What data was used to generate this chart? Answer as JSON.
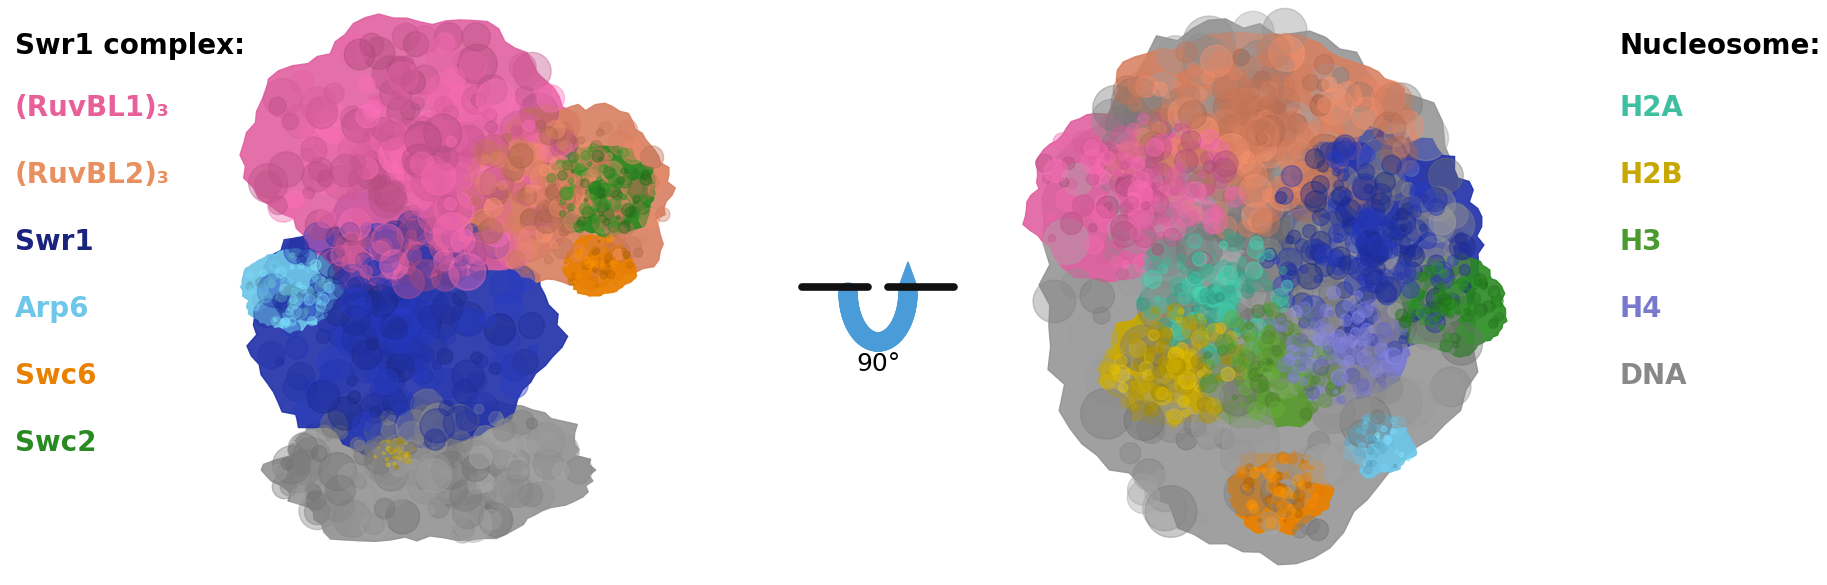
{
  "bg_color": "#ffffff",
  "title_fontsize": 20,
  "label_fontsize": 20,
  "left_legend_title": "Swr1 complex:",
  "left_legend_title_color": "#000000",
  "left_legend_items": [
    {
      "text": "(RuvBL1)₃",
      "color": "#e8609a"
    },
    {
      "text": "(RuvBL2)₃",
      "color": "#e89060"
    },
    {
      "text": "Swr1",
      "color": "#1a237e"
    },
    {
      "text": "Arp6",
      "color": "#6ec6e8"
    },
    {
      "text": "Swc6",
      "color": "#e88000"
    },
    {
      "text": "Swc2",
      "color": "#2a8a22"
    }
  ],
  "right_legend_title": "Nucleosome:",
  "right_legend_title_color": "#000000",
  "right_legend_items": [
    {
      "text": "H2A",
      "color": "#3dbfa0"
    },
    {
      "text": "H2B",
      "color": "#c8a800"
    },
    {
      "text": "H3",
      "color": "#4a9a30"
    },
    {
      "text": "H4",
      "color": "#7878cc"
    },
    {
      "text": "DNA",
      "color": "#888888"
    }
  ],
  "rotation_label": "90°",
  "rotation_label_color": "#000000",
  "arrow_color": "#4a9cd8",
  "fig_width": 18.27,
  "fig_height": 5.85,
  "dpi": 100
}
